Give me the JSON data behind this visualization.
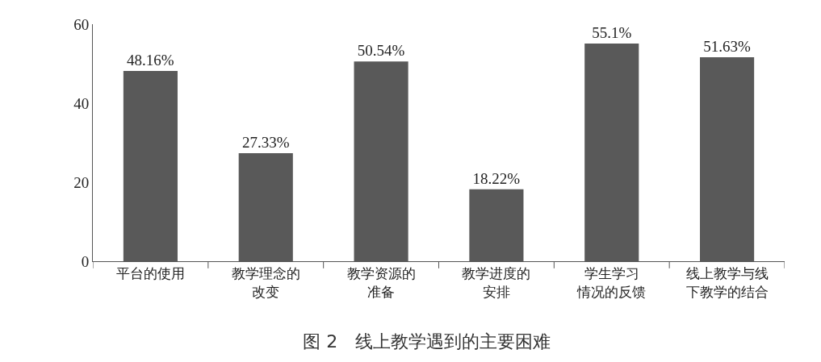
{
  "chart_data": {
    "type": "bar",
    "title": "图 2　线上教学遇到的主要困难",
    "categories": [
      "平台的使用",
      "教学理念的改变",
      "教学资源的准备",
      "教学进度的安排",
      "学生学习情况的反馈",
      "线上教学与线下教学的结合"
    ],
    "values": [
      48.16,
      27.33,
      50.54,
      18.22,
      55.1,
      51.63
    ],
    "value_labels": [
      "48.16%",
      "27.33%",
      "50.54%",
      "18.22%",
      "55.1%",
      "51.63%"
    ],
    "color": "#595959",
    "ylim": [
      0,
      60
    ],
    "yticks": [
      0,
      20,
      40,
      60
    ],
    "legend": false
  }
}
